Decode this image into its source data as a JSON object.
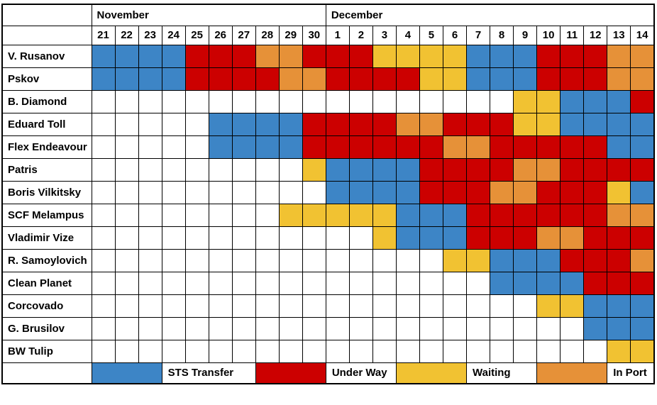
{
  "header": {
    "months": [
      {
        "label": "November",
        "span": 10
      },
      {
        "label": "December",
        "span": 14
      }
    ],
    "days": [
      "21",
      "22",
      "23",
      "24",
      "25",
      "26",
      "27",
      "28",
      "29",
      "30",
      "1",
      "2",
      "3",
      "4",
      "5",
      "6",
      "7",
      "8",
      "9",
      "10",
      "11",
      "12",
      "13",
      "14"
    ]
  },
  "colors": {
    "B": "#3D85C6",
    "R": "#CC0000",
    "Y": "#F1C232",
    "O": "#E69138",
    "W": "#FFFFFF",
    "grid": "#000000"
  },
  "legend": {
    "items": [
      {
        "label": "STS Transfer",
        "status": "B",
        "color": "#3D85C6",
        "swatch_cols": 3,
        "label_cols": 4
      },
      {
        "label": "Under Way",
        "status": "R",
        "color": "#CC0000",
        "swatch_cols": 3,
        "label_cols": 3
      },
      {
        "label": "Waiting",
        "status": "Y",
        "color": "#F1C232",
        "swatch_cols": 3,
        "label_cols": 3
      },
      {
        "label": "In Port",
        "status": "O",
        "color": "#E69138",
        "swatch_cols": 3,
        "label_cols": 2
      }
    ]
  },
  "chart_data": {
    "type": "heatmap",
    "title": "",
    "x_categories": [
      "Nov 21",
      "Nov 22",
      "Nov 23",
      "Nov 24",
      "Nov 25",
      "Nov 26",
      "Nov 27",
      "Nov 28",
      "Nov 29",
      "Nov 30",
      "Dec 1",
      "Dec 2",
      "Dec 3",
      "Dec 4",
      "Dec 5",
      "Dec 6",
      "Dec 7",
      "Dec 8",
      "Dec 9",
      "Dec 10",
      "Dec 11",
      "Dec 12",
      "Dec 13",
      "Dec 14"
    ],
    "status_codes": {
      "B": "STS Transfer",
      "R": "Under Way",
      "Y": "Waiting",
      "O": "In Port",
      "W": "empty"
    },
    "rows": [
      {
        "name": "V. Rusanov",
        "cells": "BBBBRRROORRRYYYYBBBRRROO"
      },
      {
        "name": "Pskov",
        "cells": "BBBBRRRROORRRRYYBBBRRROO"
      },
      {
        "name": "B. Diamond",
        "cells": "WWWWWWWWWWWWWWWWWWYYBBBR"
      },
      {
        "name": "Eduard Toll",
        "cells": "WWWWWBBBBRRRROORRRYYBBBB"
      },
      {
        "name": "Flex Endeavour",
        "cells": "WWWWWBBBBRRRRRROORRRRRBB"
      },
      {
        "name": "Patris",
        "cells": "WWWWWWWWWYBBBBRRRROORRRR"
      },
      {
        "name": "Boris Vilkitsky",
        "cells": "WWWWWWWWWWBBBBRRROORRRYB"
      },
      {
        "name": "SCF Melampus",
        "cells": "WWWWWWWWYYYYYBBBRRRRRROO"
      },
      {
        "name": "Vladimir Vize",
        "cells": "WWWWWWWWWWWWYBBBRRROORRR"
      },
      {
        "name": "R. Samoylovich",
        "cells": "WWWWWWWWWWWWWWWYYBBBRRRO"
      },
      {
        "name": "Clean Planet",
        "cells": "WWWWWWWWWWWWWWWWWBBBBRRR"
      },
      {
        "name": "Corcovado",
        "cells": "WWWWWWWWWWWWWWWWWWWYYBBB"
      },
      {
        "name": "G. Brusilov",
        "cells": "WWWWWWWWWWWWWWWWWWWWWBBB"
      },
      {
        "name": "BW Tulip",
        "cells": "WWWWWWWWWWWWWWWWWWWWWWYY"
      }
    ]
  }
}
